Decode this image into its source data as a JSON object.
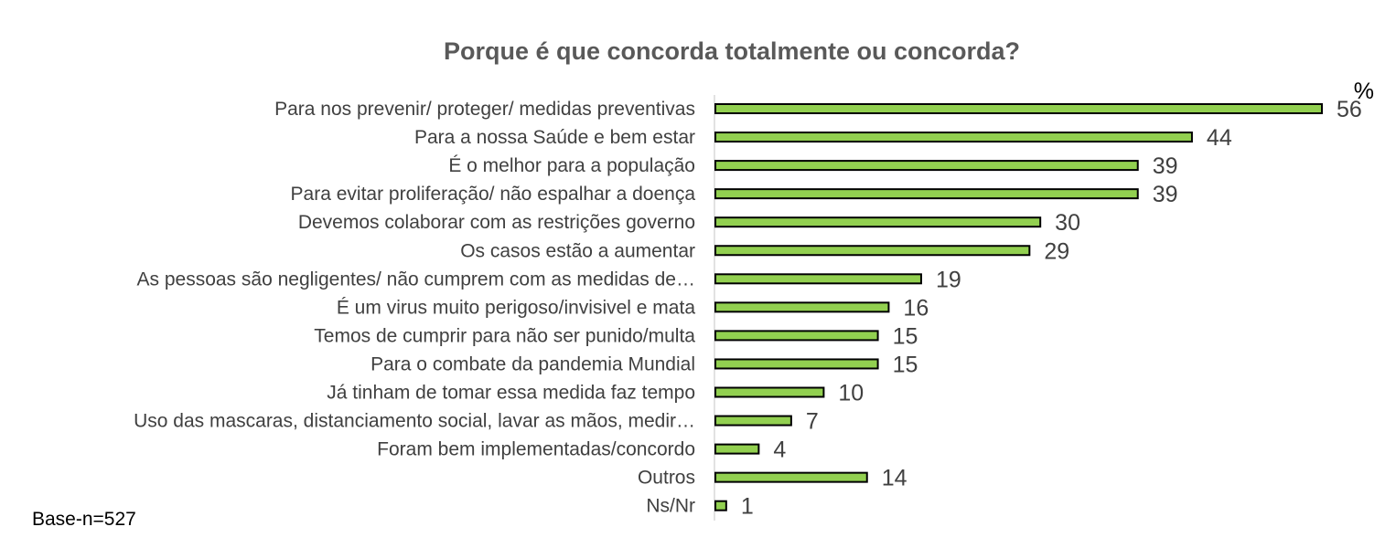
{
  "chart_data": {
    "type": "bar",
    "orientation": "horizontal",
    "title": "Porque é que concorda totalmente ou concorda?",
    "unit": "%",
    "categories": [
      "Para nos prevenir/ proteger/ medidas preventivas",
      "Para a nossa Saúde e  bem estar",
      "É o melhor para a população",
      "Para evitar proliferação/ não espalhar a doença",
      "Devemos colaborar com as restrições governo",
      "Os casos estão a aumentar",
      "As pessoas são negligentes/  não cumprem com as medidas de…",
      "É um virus muito perigoso/invisivel e  mata",
      "Temos de cumprir para não ser punido/multa",
      "Para o combate da pandemia Mundial",
      "Já tinham de tomar essa medida faz tempo",
      "Uso das mascaras, distanciamento social, lavar as mãos, medir…",
      "Foram bem implementadas/concordo",
      "Outros",
      "Ns/Nr"
    ],
    "values": [
      56,
      44,
      39,
      39,
      30,
      29,
      19,
      16,
      15,
      15,
      10,
      7,
      4,
      14,
      1
    ],
    "xlim": [
      0,
      56
    ],
    "grid": false,
    "legend": "none",
    "note": "Base-n=527",
    "colors": {
      "bar": "#92d050",
      "bar_stroke": "#000000",
      "text": "#404040",
      "title": "#595959",
      "axis": "#d9d9d9"
    }
  }
}
